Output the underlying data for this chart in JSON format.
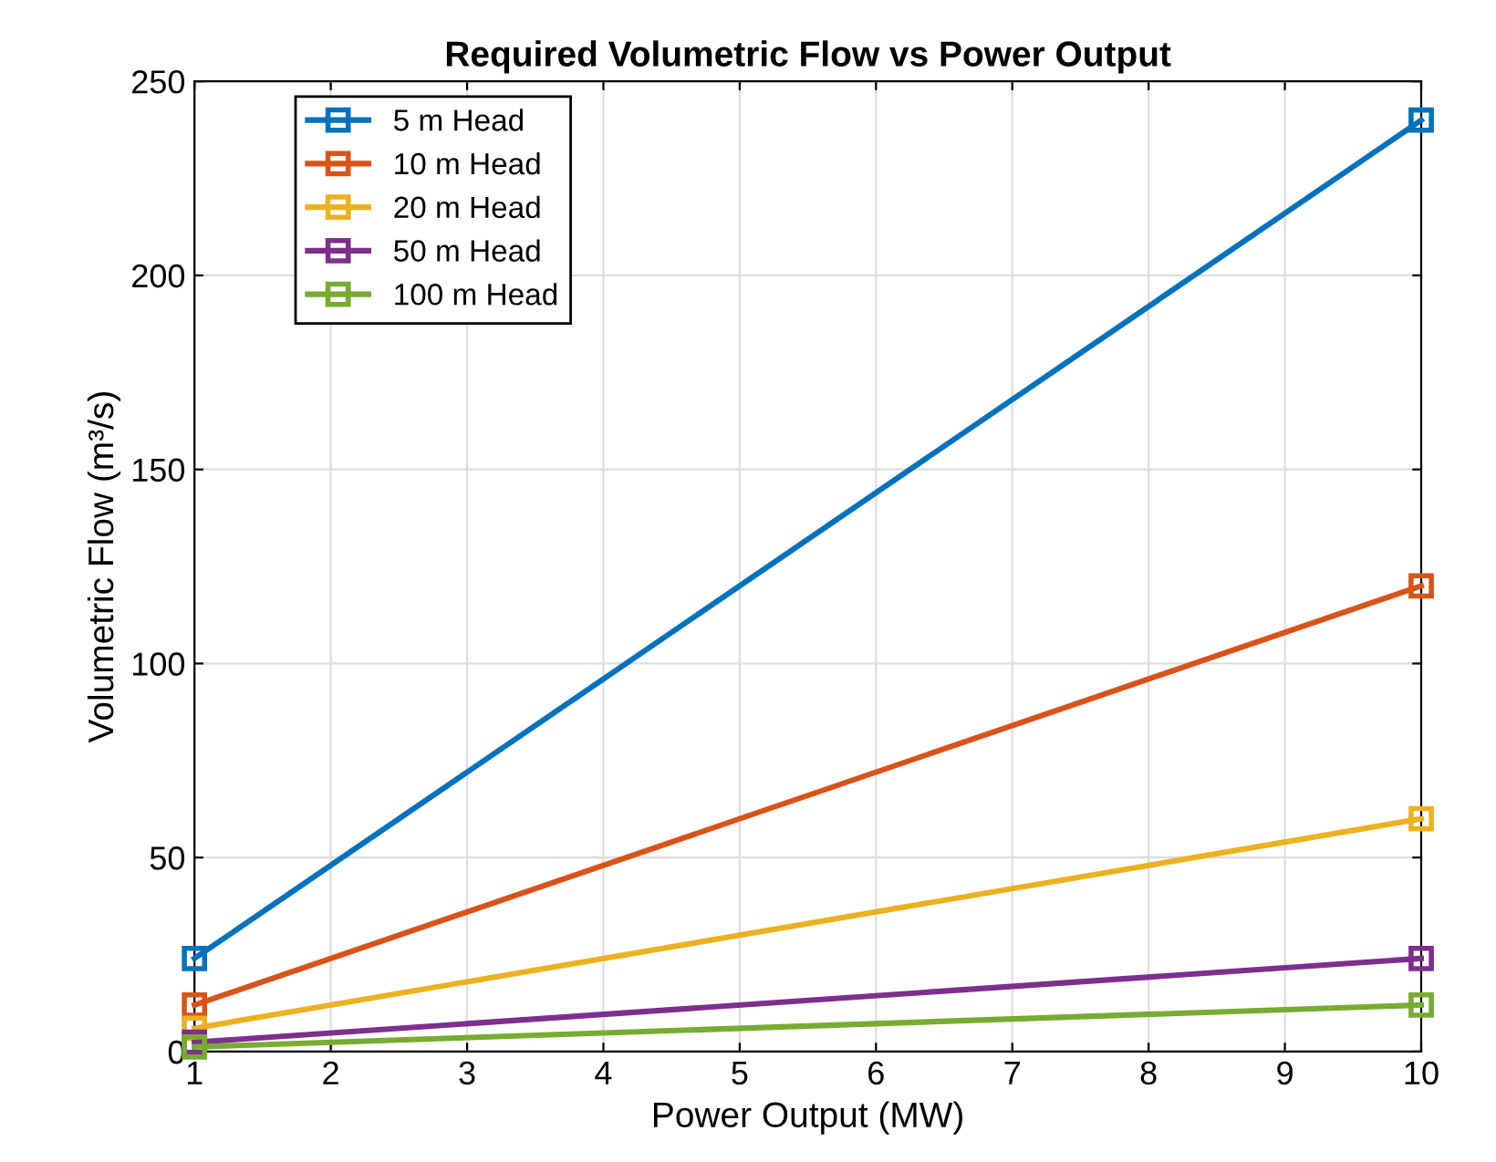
{
  "chart_data": {
    "type": "line",
    "title": "Required Volumetric Flow vs Power Output",
    "xlabel": "Power Output (MW)",
    "ylabel": "Volumetric Flow (m³/s)",
    "x": [
      1,
      10
    ],
    "series": [
      {
        "name": "5 m Head",
        "color": "#0072bd",
        "values": [
          24,
          240
        ]
      },
      {
        "name": "10 m Head",
        "color": "#d95319",
        "values": [
          12,
          120
        ]
      },
      {
        "name": "20 m Head",
        "color": "#edb120",
        "values": [
          6,
          60
        ]
      },
      {
        "name": "50 m Head",
        "color": "#7e2f8e",
        "values": [
          2.4,
          24
        ]
      },
      {
        "name": "100 m Head",
        "color": "#77ac30",
        "values": [
          1.2,
          12
        ]
      }
    ],
    "xlim": [
      1,
      10
    ],
    "ylim": [
      0,
      250
    ],
    "xticks": [
      1,
      2,
      3,
      4,
      5,
      6,
      7,
      8,
      9,
      10
    ],
    "yticks": [
      0,
      50,
      100,
      150,
      200,
      250
    ],
    "grid": true,
    "legend": "top left",
    "marker": "square",
    "line_style": "solid"
  }
}
